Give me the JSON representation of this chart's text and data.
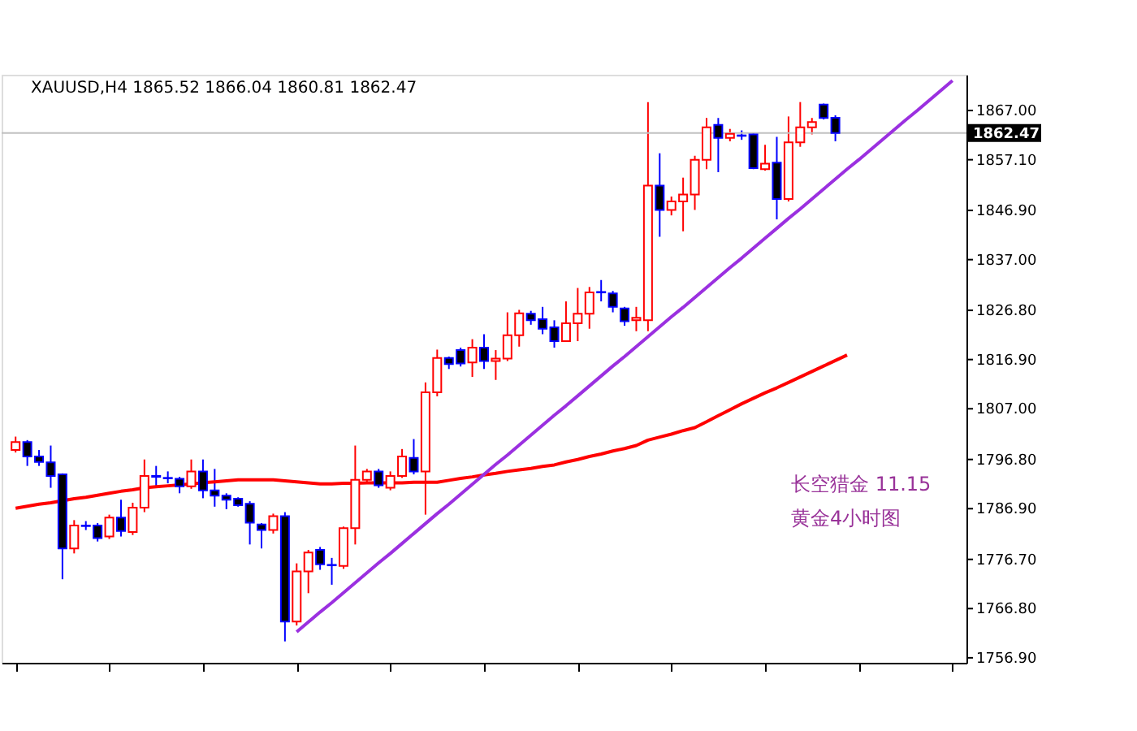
{
  "chart_data": {
    "type": "candlestick",
    "title": "XAUUSD,H4  1865.52 1866.04 1860.81 1862.47",
    "categories": [
      null,
      null,
      null,
      null,
      null,
      null,
      null,
      null,
      null,
      null,
      null,
      null,
      null,
      null,
      null,
      null,
      null,
      null,
      null,
      null,
      null,
      null,
      null,
      null,
      null,
      null,
      null,
      null,
      null,
      null,
      null,
      null,
      null,
      null,
      null,
      null,
      null,
      null,
      null,
      null,
      null,
      null,
      null,
      null,
      null,
      null,
      null,
      null,
      null,
      null,
      null,
      null,
      null,
      null,
      null,
      null,
      null,
      null,
      null,
      null,
      null,
      null,
      null,
      null,
      null,
      null,
      null,
      null,
      null,
      null,
      null,
      null,
      null,
      null,
      null,
      null,
      null,
      null,
      null,
      null,
      null
    ],
    "ohlc": [
      [
        1798.7,
        1801.4,
        1798.2,
        1800.3
      ],
      [
        1800.3,
        1800.7,
        1795.5,
        1797.4
      ],
      [
        1797.4,
        1798.7,
        1795.5,
        1796.3
      ],
      [
        1796.2,
        1799.6,
        1791.1,
        1793.5
      ],
      [
        1793.8,
        1794.0,
        1772.7,
        1778.9
      ],
      [
        1778.9,
        1784.6,
        1777.9,
        1783.5
      ],
      [
        1783.5,
        1784.4,
        1782.6,
        1783.4
      ],
      [
        1783.5,
        1784.0,
        1780.3,
        1781.0
      ],
      [
        1781.3,
        1785.7,
        1780.8,
        1785.1
      ],
      [
        1785.1,
        1788.7,
        1781.3,
        1782.4
      ],
      [
        1782.2,
        1788.1,
        1781.6,
        1787.1
      ],
      [
        1787.1,
        1796.8,
        1786.2,
        1793.5
      ],
      [
        1793.5,
        1795.5,
        1791.1,
        1793.3
      ],
      [
        1793.1,
        1794.4,
        1792.0,
        1793.0
      ],
      [
        1792.9,
        1793.3,
        1790.0,
        1791.4
      ],
      [
        1791.4,
        1796.8,
        1790.9,
        1794.4
      ],
      [
        1794.4,
        1796.8,
        1789.0,
        1790.6
      ],
      [
        1790.6,
        1794.9,
        1787.3,
        1789.5
      ],
      [
        1789.5,
        1790.0,
        1786.8,
        1788.7
      ],
      [
        1788.9,
        1789.2,
        1787.3,
        1787.6
      ],
      [
        1787.9,
        1788.4,
        1779.7,
        1784.1
      ],
      [
        1783.7,
        1784.0,
        1778.9,
        1782.6
      ],
      [
        1782.6,
        1785.9,
        1781.9,
        1785.4
      ],
      [
        1785.4,
        1786.2,
        1760.2,
        1764.2
      ],
      [
        1764.2,
        1775.9,
        1763.4,
        1774.3
      ],
      [
        1774.3,
        1778.6,
        1769.9,
        1778.1
      ],
      [
        1778.6,
        1779.2,
        1774.6,
        1775.7
      ],
      [
        1775.6,
        1777.0,
        1771.6,
        1775.5
      ],
      [
        1775.4,
        1783.3,
        1774.8,
        1783.0
      ],
      [
        1783.0,
        1799.6,
        1779.7,
        1792.7
      ],
      [
        1792.7,
        1794.9,
        1792.2,
        1794.4
      ],
      [
        1794.4,
        1794.9,
        1791.1,
        1791.6
      ],
      [
        1791.1,
        1794.4,
        1790.6,
        1793.5
      ],
      [
        1793.5,
        1798.9,
        1793.1,
        1797.4
      ],
      [
        1797.1,
        1800.9,
        1793.8,
        1794.4
      ],
      [
        1794.4,
        1812.3,
        1785.7,
        1810.3
      ],
      [
        1810.3,
        1818.9,
        1809.5,
        1817.2
      ],
      [
        1817.2,
        1817.5,
        1815.0,
        1816.0
      ],
      [
        1818.8,
        1819.3,
        1815.5,
        1816.1
      ],
      [
        1816.3,
        1821.0,
        1813.4,
        1819.3
      ],
      [
        1819.3,
        1822.0,
        1815.0,
        1816.6
      ],
      [
        1816.6,
        1818.8,
        1812.8,
        1817.1
      ],
      [
        1817.1,
        1826.4,
        1816.6,
        1821.8
      ],
      [
        1821.8,
        1826.9,
        1819.5,
        1826.2
      ],
      [
        1826.1,
        1826.7,
        1823.9,
        1824.8
      ],
      [
        1825.0,
        1827.5,
        1822.0,
        1823.1
      ],
      [
        1823.4,
        1824.8,
        1819.3,
        1820.6
      ],
      [
        1820.6,
        1828.6,
        1820.6,
        1824.2
      ],
      [
        1824.2,
        1831.3,
        1820.6,
        1826.1
      ],
      [
        1826.1,
        1831.5,
        1823.1,
        1830.4
      ],
      [
        1830.5,
        1832.9,
        1828.6,
        1830.4
      ],
      [
        1830.2,
        1830.7,
        1826.4,
        1827.5
      ],
      [
        1827.2,
        1827.5,
        1823.7,
        1824.6
      ],
      [
        1824.8,
        1827.5,
        1822.6,
        1825.3
      ],
      [
        1824.8,
        1868.7,
        1822.6,
        1851.9
      ],
      [
        1851.9,
        1858.4,
        1841.6,
        1847.0
      ],
      [
        1847.0,
        1849.7,
        1845.9,
        1848.7
      ],
      [
        1848.7,
        1853.5,
        1842.7,
        1850.1
      ],
      [
        1850.1,
        1857.9,
        1847.0,
        1857.1
      ],
      [
        1857.1,
        1865.5,
        1855.2,
        1863.6
      ],
      [
        1864.1,
        1865.5,
        1854.6,
        1861.5
      ],
      [
        1861.5,
        1863.3,
        1860.8,
        1862.3
      ],
      [
        1862.0,
        1863.0,
        1861.1,
        1861.9
      ],
      [
        1862.2,
        1862.6,
        1855.2,
        1855.4
      ],
      [
        1855.2,
        1860.1,
        1854.9,
        1856.3
      ],
      [
        1856.5,
        1861.7,
        1845.1,
        1849.2
      ],
      [
        1849.2,
        1865.8,
        1848.7,
        1860.6
      ],
      [
        1860.6,
        1868.7,
        1859.7,
        1863.6
      ],
      [
        1863.6,
        1865.5,
        1862.2,
        1864.7
      ],
      [
        1868.2,
        1868.4,
        1865.2,
        1865.5
      ],
      [
        1865.52,
        1866.04,
        1860.81,
        1862.47
      ],
      null,
      null,
      null,
      null,
      null,
      null,
      null,
      null,
      null,
      null
    ],
    "colors": [
      "#ff0000",
      "#0000ff",
      "#0000ff",
      "#0000ff",
      "#0000ff",
      "#ff0000",
      "#0000ff",
      "#0000ff",
      "#ff0000",
      "#0000ff",
      "#ff0000",
      "#ff0000",
      "#0000ff",
      "#0000ff",
      "#0000ff",
      "#ff0000",
      "#0000ff",
      "#0000ff",
      "#0000ff",
      "#0000ff",
      "#0000ff",
      "#0000ff",
      "#ff0000",
      "#0000ff",
      "#ff0000",
      "#ff0000",
      "#0000ff",
      "#0000ff",
      "#ff0000",
      "#ff0000",
      "#ff0000",
      "#0000ff",
      "#ff0000",
      "#ff0000",
      "#0000ff",
      "#ff0000",
      "#ff0000",
      "#0000ff",
      "#0000ff",
      "#ff0000",
      "#0000ff",
      "#ff0000",
      "#ff0000",
      "#ff0000",
      "#0000ff",
      "#0000ff",
      "#0000ff",
      "#ff0000",
      "#ff0000",
      "#ff0000",
      "#0000ff",
      "#0000ff",
      "#0000ff",
      "#ff0000",
      "#ff0000",
      "#0000ff",
      "#ff0000",
      "#ff0000",
      "#ff0000",
      "#ff0000",
      "#0000ff",
      "#ff0000",
      "#0000ff",
      "#0000ff",
      "#ff0000",
      "#0000ff",
      "#ff0000",
      "#ff0000",
      "#ff0000",
      "#0000ff",
      "#0000ff",
      null,
      null,
      null,
      null,
      null,
      null,
      null,
      null,
      null,
      null
    ],
    "series": [
      {
        "type": "line",
        "color": "#ff0000",
        "values": [
          1787.0,
          1787.4,
          1787.8,
          1788.1,
          1788.5,
          1788.9,
          1789.2,
          1789.6,
          1790.0,
          1790.4,
          1790.7,
          1791.1,
          1791.3,
          1791.5,
          1791.7,
          1791.9,
          1792.1,
          1792.3,
          1792.5,
          1792.7,
          1792.7,
          1792.7,
          1792.7,
          1792.5,
          1792.3,
          1792.1,
          1791.9,
          1791.9,
          1792.0,
          1792.0,
          1792.1,
          1792.1,
          1792.1,
          1792.1,
          1792.2,
          1792.2,
          1792.2,
          1792.6,
          1793.0,
          1793.3,
          1793.7,
          1794.0,
          1794.4,
          1794.7,
          1795.0,
          1795.4,
          1795.7,
          1796.3,
          1796.8,
          1797.4,
          1797.9,
          1798.5,
          1799.0,
          1799.6,
          1800.7,
          1801.3,
          1801.9,
          1802.6,
          1803.2,
          1804.4,
          1805.6,
          1806.8,
          1808.0,
          1809.1,
          1810.2,
          1811.2,
          1812.3,
          1813.4,
          1814.5,
          1815.6,
          1816.7,
          1817.8,
          null,
          null,
          null,
          null,
          null,
          null,
          null,
          null,
          null
        ]
      },
      {
        "type": "line",
        "color": "#9b30e0",
        "values": [
          null,
          null,
          null,
          null,
          null,
          null,
          null,
          null,
          null,
          null,
          null,
          null,
          null,
          null,
          null,
          null,
          null,
          null,
          null,
          null,
          null,
          null,
          null,
          null,
          1762.1,
          1764.1,
          1766.1,
          1768.0,
          1770.0,
          1772.0,
          1774.0,
          1776.0,
          1777.9,
          1779.9,
          1781.9,
          1783.9,
          1785.9,
          1787.8,
          1789.8,
          1791.8,
          1793.8,
          1795.8,
          1797.7,
          1799.7,
          1801.7,
          1803.7,
          1805.7,
          1807.6,
          1809.6,
          1811.6,
          1813.6,
          1815.6,
          1817.5,
          1819.5,
          1821.5,
          1823.5,
          1825.5,
          1827.4,
          1829.4,
          1831.4,
          1833.4,
          1835.4,
          1837.3,
          1839.3,
          1841.3,
          1843.3,
          1845.3,
          1847.2,
          1849.2,
          1851.2,
          1853.2,
          1855.2,
          1857.1,
          1859.1,
          1861.1,
          1863.1,
          1865.1,
          1867.0,
          1869.0,
          1871.0,
          1873.0
        ]
      }
    ],
    "ylim": [
      1755.9,
      1874.2
    ],
    "yticks": [
      {
        "value": 1756.9,
        "label": "1756.90"
      },
      {
        "value": 1766.8,
        "label": "1766.80"
      },
      {
        "value": 1776.7,
        "label": "1776.70"
      },
      {
        "value": 1786.9,
        "label": "1786.90"
      },
      {
        "value": 1796.8,
        "label": "1796.80"
      },
      {
        "value": 1807.0,
        "label": "1807.00"
      },
      {
        "value": 1816.9,
        "label": "1816.90"
      },
      {
        "value": 1826.8,
        "label": "1826.80"
      },
      {
        "value": 1837.0,
        "label": "1837.00"
      },
      {
        "value": 1846.9,
        "label": "1846.90"
      },
      {
        "value": 1857.1,
        "label": "1857.10"
      },
      {
        "value": 1867.0,
        "label": "1867.00"
      }
    ],
    "ref_lines": [
      {
        "axis": "y",
        "value": 1862.47,
        "label": "1862.47",
        "color": "#c0c0c0"
      }
    ],
    "annotations": [
      "长空猎金  11.15",
      "黄金4小时图"
    ],
    "tick_labels": "y",
    "grid": false
  }
}
